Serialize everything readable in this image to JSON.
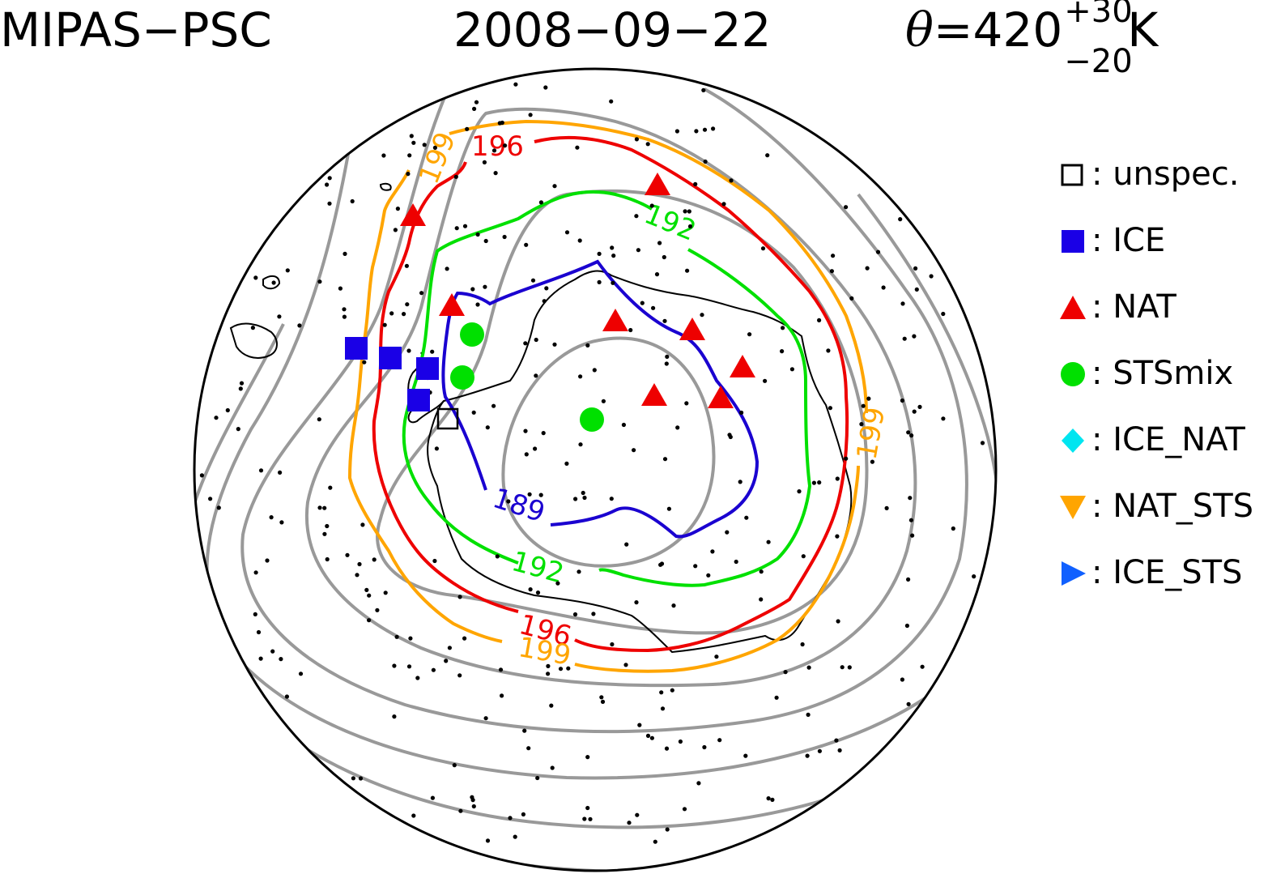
{
  "header": {
    "instrument": "MIPAS−PSC",
    "date": "2008−09−22",
    "theta_symbol": "θ",
    "theta_value": "=420",
    "theta_upper": "+30",
    "theta_lower": "−20",
    "theta_unit": "K"
  },
  "legend": [
    {
      "key": "unspec",
      "label": ": unspec.",
      "symbol": "open-square",
      "color": "#000000"
    },
    {
      "key": "ice",
      "label": ": ICE",
      "symbol": "square",
      "color": "#1a00e6"
    },
    {
      "key": "nat",
      "label": ": NAT",
      "symbol": "triangle-up",
      "color": "#ee0000"
    },
    {
      "key": "stsmix",
      "label": ": STSmix",
      "symbol": "circle",
      "color": "#00e000"
    },
    {
      "key": "ice_nat",
      "label": ": ICE_NAT",
      "symbol": "diamond",
      "color": "#00e5f0"
    },
    {
      "key": "nat_sts",
      "label": ": NAT_STS",
      "symbol": "triangle-down",
      "color": "#ffa500"
    },
    {
      "key": "ice_sts",
      "label": ": ICE_STS",
      "symbol": "triangle-right",
      "color": "#1060ff"
    }
  ],
  "contours": {
    "c189": {
      "label": "189",
      "color": "#1a00d0"
    },
    "c192": {
      "label": "192",
      "color": "#00e000"
    },
    "c196": {
      "label": "196",
      "color": "#ee0000"
    },
    "c199": {
      "label": "199",
      "color": "#ffa500"
    },
    "other": {
      "color": "#999999"
    }
  },
  "colors": {
    "coast": "#000000",
    "dots": "#000000",
    "map_border": "#000000"
  }
}
